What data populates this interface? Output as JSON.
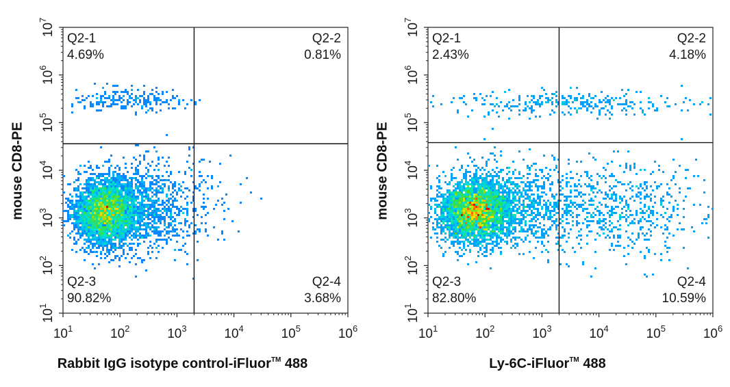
{
  "chart_data": [
    {
      "type": "scatter",
      "title": "",
      "xlabel": "Rabbit IgG isotype control-iFluor",
      "xlabel_tm": "TM",
      "xlabel_suffix": " 488",
      "ylabel": "mouse CD8-PE",
      "xscale": "log",
      "yscale": "log",
      "xlim": [
        10,
        1000000
      ],
      "ylim": [
        10,
        10000000
      ],
      "x_ticks": [
        {
          "base": "10",
          "exp": "1",
          "value": 10
        },
        {
          "base": "10",
          "exp": "2",
          "value": 100
        },
        {
          "base": "10",
          "exp": "3",
          "value": 1000
        },
        {
          "base": "10",
          "exp": "4",
          "value": 10000
        },
        {
          "base": "10",
          "exp": "5",
          "value": 100000
        },
        {
          "base": "10",
          "exp": "6",
          "value": 1000000
        }
      ],
      "y_ticks": [
        {
          "base": "10",
          "exp": "1",
          "value": 10
        },
        {
          "base": "10",
          "exp": "2",
          "value": 100
        },
        {
          "base": "10",
          "exp": "3",
          "value": 1000
        },
        {
          "base": "10",
          "exp": "4",
          "value": 10000
        },
        {
          "base": "10",
          "exp": "5",
          "value": 100000
        },
        {
          "base": "10",
          "exp": "6",
          "value": 1000000
        },
        {
          "base": "10",
          "exp": "7",
          "value": 10000000
        }
      ],
      "gate": {
        "x": 2000,
        "y": 36000
      },
      "quadrants": [
        {
          "name": "Q2-1",
          "percent": "4.69%",
          "position": "top-left"
        },
        {
          "name": "Q2-2",
          "percent": "0.81%",
          "position": "top-right"
        },
        {
          "name": "Q2-3",
          "percent": "90.82%",
          "position": "bottom-left"
        },
        {
          "name": "Q2-4",
          "percent": "3.68%",
          "position": "bottom-right"
        }
      ],
      "populations": [
        {
          "cx": 55,
          "cy": 1300,
          "sx": 0.27,
          "sy": 0.33,
          "fraction": 0.72
        },
        {
          "cx": 200,
          "cy": 1700,
          "sx": 0.45,
          "sy": 0.45,
          "fraction": 0.2
        },
        {
          "cx": 1000,
          "cy": 2500,
          "sx": 0.5,
          "sy": 0.5,
          "fraction": 0.04
        },
        {
          "cx": 120,
          "cy": 300000,
          "sx": 0.5,
          "sy": 0.13,
          "fraction": 0.04
        }
      ],
      "colors": {
        "low": "#1a1aff",
        "mid": "#00e5ff",
        "high": "#ff2000"
      }
    },
    {
      "type": "scatter",
      "title": "",
      "xlabel": "Ly-6C-iFluor",
      "xlabel_tm": "TM",
      "xlabel_suffix": " 488",
      "ylabel": "mouse CD8-PE",
      "xscale": "log",
      "yscale": "log",
      "xlim": [
        10,
        1000000
      ],
      "ylim": [
        10,
        10000000
      ],
      "x_ticks": [
        {
          "base": "10",
          "exp": "1",
          "value": 10
        },
        {
          "base": "10",
          "exp": "2",
          "value": 100
        },
        {
          "base": "10",
          "exp": "3",
          "value": 1000
        },
        {
          "base": "10",
          "exp": "4",
          "value": 10000
        },
        {
          "base": "10",
          "exp": "5",
          "value": 100000
        },
        {
          "base": "10",
          "exp": "6",
          "value": 1000000
        }
      ],
      "y_ticks": [
        {
          "base": "10",
          "exp": "1",
          "value": 10
        },
        {
          "base": "10",
          "exp": "2",
          "value": 100
        },
        {
          "base": "10",
          "exp": "3",
          "value": 1000
        },
        {
          "base": "10",
          "exp": "4",
          "value": 10000
        },
        {
          "base": "10",
          "exp": "5",
          "value": 100000
        },
        {
          "base": "10",
          "exp": "6",
          "value": 1000000
        },
        {
          "base": "10",
          "exp": "7",
          "value": 10000000
        }
      ],
      "gate": {
        "x": 2000,
        "y": 38000
      },
      "quadrants": [
        {
          "name": "Q2-1",
          "percent": "2.43%",
          "position": "top-left"
        },
        {
          "name": "Q2-2",
          "percent": "4.18%",
          "position": "top-right"
        },
        {
          "name": "Q2-3",
          "percent": "82.80%",
          "position": "bottom-left"
        },
        {
          "name": "Q2-4",
          "percent": "10.59%",
          "position": "bottom-right"
        }
      ],
      "populations": [
        {
          "cx": 65,
          "cy": 1400,
          "sx": 0.3,
          "sy": 0.33,
          "fraction": 0.62
        },
        {
          "cx": 300,
          "cy": 1800,
          "sx": 0.55,
          "sy": 0.45,
          "fraction": 0.19
        },
        {
          "cx": 20000,
          "cy": 1500,
          "sx": 0.8,
          "sy": 0.5,
          "fraction": 0.13
        },
        {
          "cx": 3000,
          "cy": 250000,
          "sx": 1.1,
          "sy": 0.13,
          "fraction": 0.06
        }
      ],
      "colors": {
        "low": "#1a1aff",
        "mid": "#00e5ff",
        "high": "#ff2000"
      }
    }
  ]
}
